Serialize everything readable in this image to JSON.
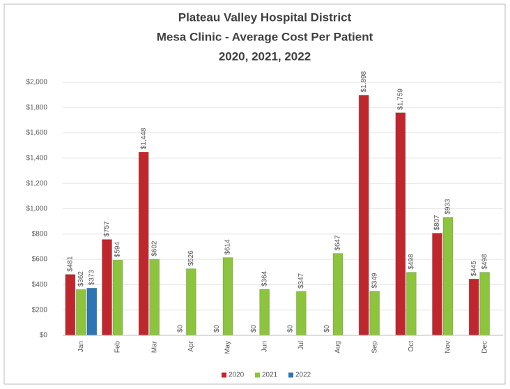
{
  "chart_data": {
    "type": "bar",
    "title": [
      "Plateau Valley Hospital District",
      "Mesa Clinic - Average Cost Per Patient",
      "2020, 2021, 2022"
    ],
    "categories": [
      "Jan",
      "Feb",
      "Mar",
      "Apr",
      "May",
      "Jun",
      "Jul",
      "Aug",
      "Sep",
      "Oct",
      "Nov",
      "Dec"
    ],
    "series": [
      {
        "name": "2020",
        "color": "#c0272d",
        "values": [
          481,
          757,
          1448,
          0,
          0,
          0,
          0,
          0,
          1898,
          1759,
          807,
          445
        ],
        "value_labels": [
          "$481",
          "$757",
          "$1,448",
          "$0",
          "$0",
          "$0",
          "$0",
          "$0",
          "$1,898",
          "$1,759",
          "$807",
          "$445"
        ]
      },
      {
        "name": "2021",
        "color": "#8cc43e",
        "values": [
          362,
          594,
          602,
          526,
          614,
          364,
          347,
          647,
          349,
          498,
          933,
          498
        ],
        "value_labels": [
          "$362",
          "$594",
          "$602",
          "$526",
          "$614",
          "$364",
          "$347",
          "$647",
          "$349",
          "$498",
          "$933",
          "$498"
        ]
      },
      {
        "name": "2022",
        "color": "#2e75b6",
        "values": [
          373,
          null,
          null,
          null,
          null,
          null,
          null,
          null,
          null,
          null,
          null,
          null
        ],
        "value_labels": [
          "$373",
          null,
          null,
          null,
          null,
          null,
          null,
          null,
          null,
          null,
          null,
          null
        ]
      }
    ],
    "ylim": [
      0,
      2000
    ],
    "yticks": [
      {
        "value": 0,
        "label": "$0"
      },
      {
        "value": 200,
        "label": "$200"
      },
      {
        "value": 400,
        "label": "$400"
      },
      {
        "value": 600,
        "label": "$600"
      },
      {
        "value": 800,
        "label": "$800"
      },
      {
        "value": 1000,
        "label": "$1,000"
      },
      {
        "value": 1200,
        "label": "$1,200"
      },
      {
        "value": 1400,
        "label": "$1,400"
      },
      {
        "value": 1600,
        "label": "$1,600"
      },
      {
        "value": 1800,
        "label": "$1,800"
      },
      {
        "value": 2000,
        "label": "$2,000"
      }
    ],
    "grid": true,
    "legend": "bottom"
  }
}
